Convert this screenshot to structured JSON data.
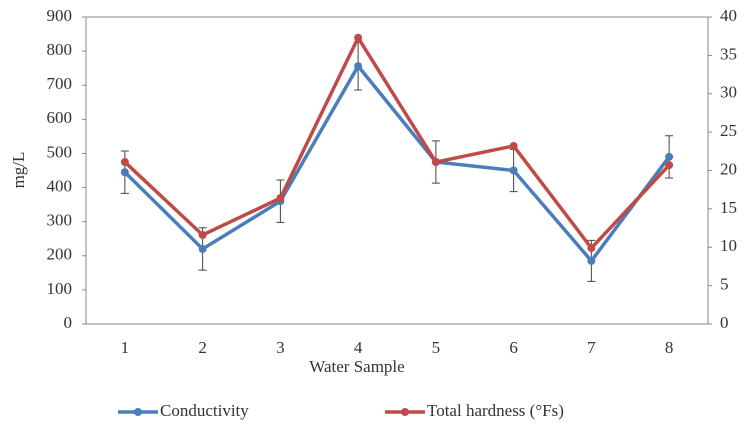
{
  "chart_data": {
    "type": "line",
    "x_label": "Water Sample",
    "y_label": "mg/L",
    "categories": [
      "1",
      "2",
      "3",
      "4",
      "5",
      "6",
      "7",
      "8"
    ],
    "series": [
      {
        "name": "Conductivity",
        "color": "#4a7ebb",
        "values": [
          445,
          220,
          360,
          756,
          475,
          450,
          185,
          490
        ],
        "errors": [
          62,
          62,
          62,
          70,
          62,
          62,
          60,
          62
        ]
      },
      {
        "name": "Total hardness (°Fs)",
        "color": "#be4b48",
        "axis": "y2",
        "values": [
          21.1,
          11.6,
          16.4,
          37.3,
          21.1,
          23.2,
          9.9,
          20.7
        ]
      }
    ],
    "ylim": [
      0,
      900
    ],
    "yticks": [
      0,
      100,
      200,
      300,
      400,
      500,
      600,
      700,
      800,
      900
    ],
    "y2lim": [
      0,
      40
    ],
    "y2ticks": [
      0,
      5,
      10,
      15,
      20,
      25,
      30,
      35,
      40
    ],
    "legend": "bottom"
  }
}
